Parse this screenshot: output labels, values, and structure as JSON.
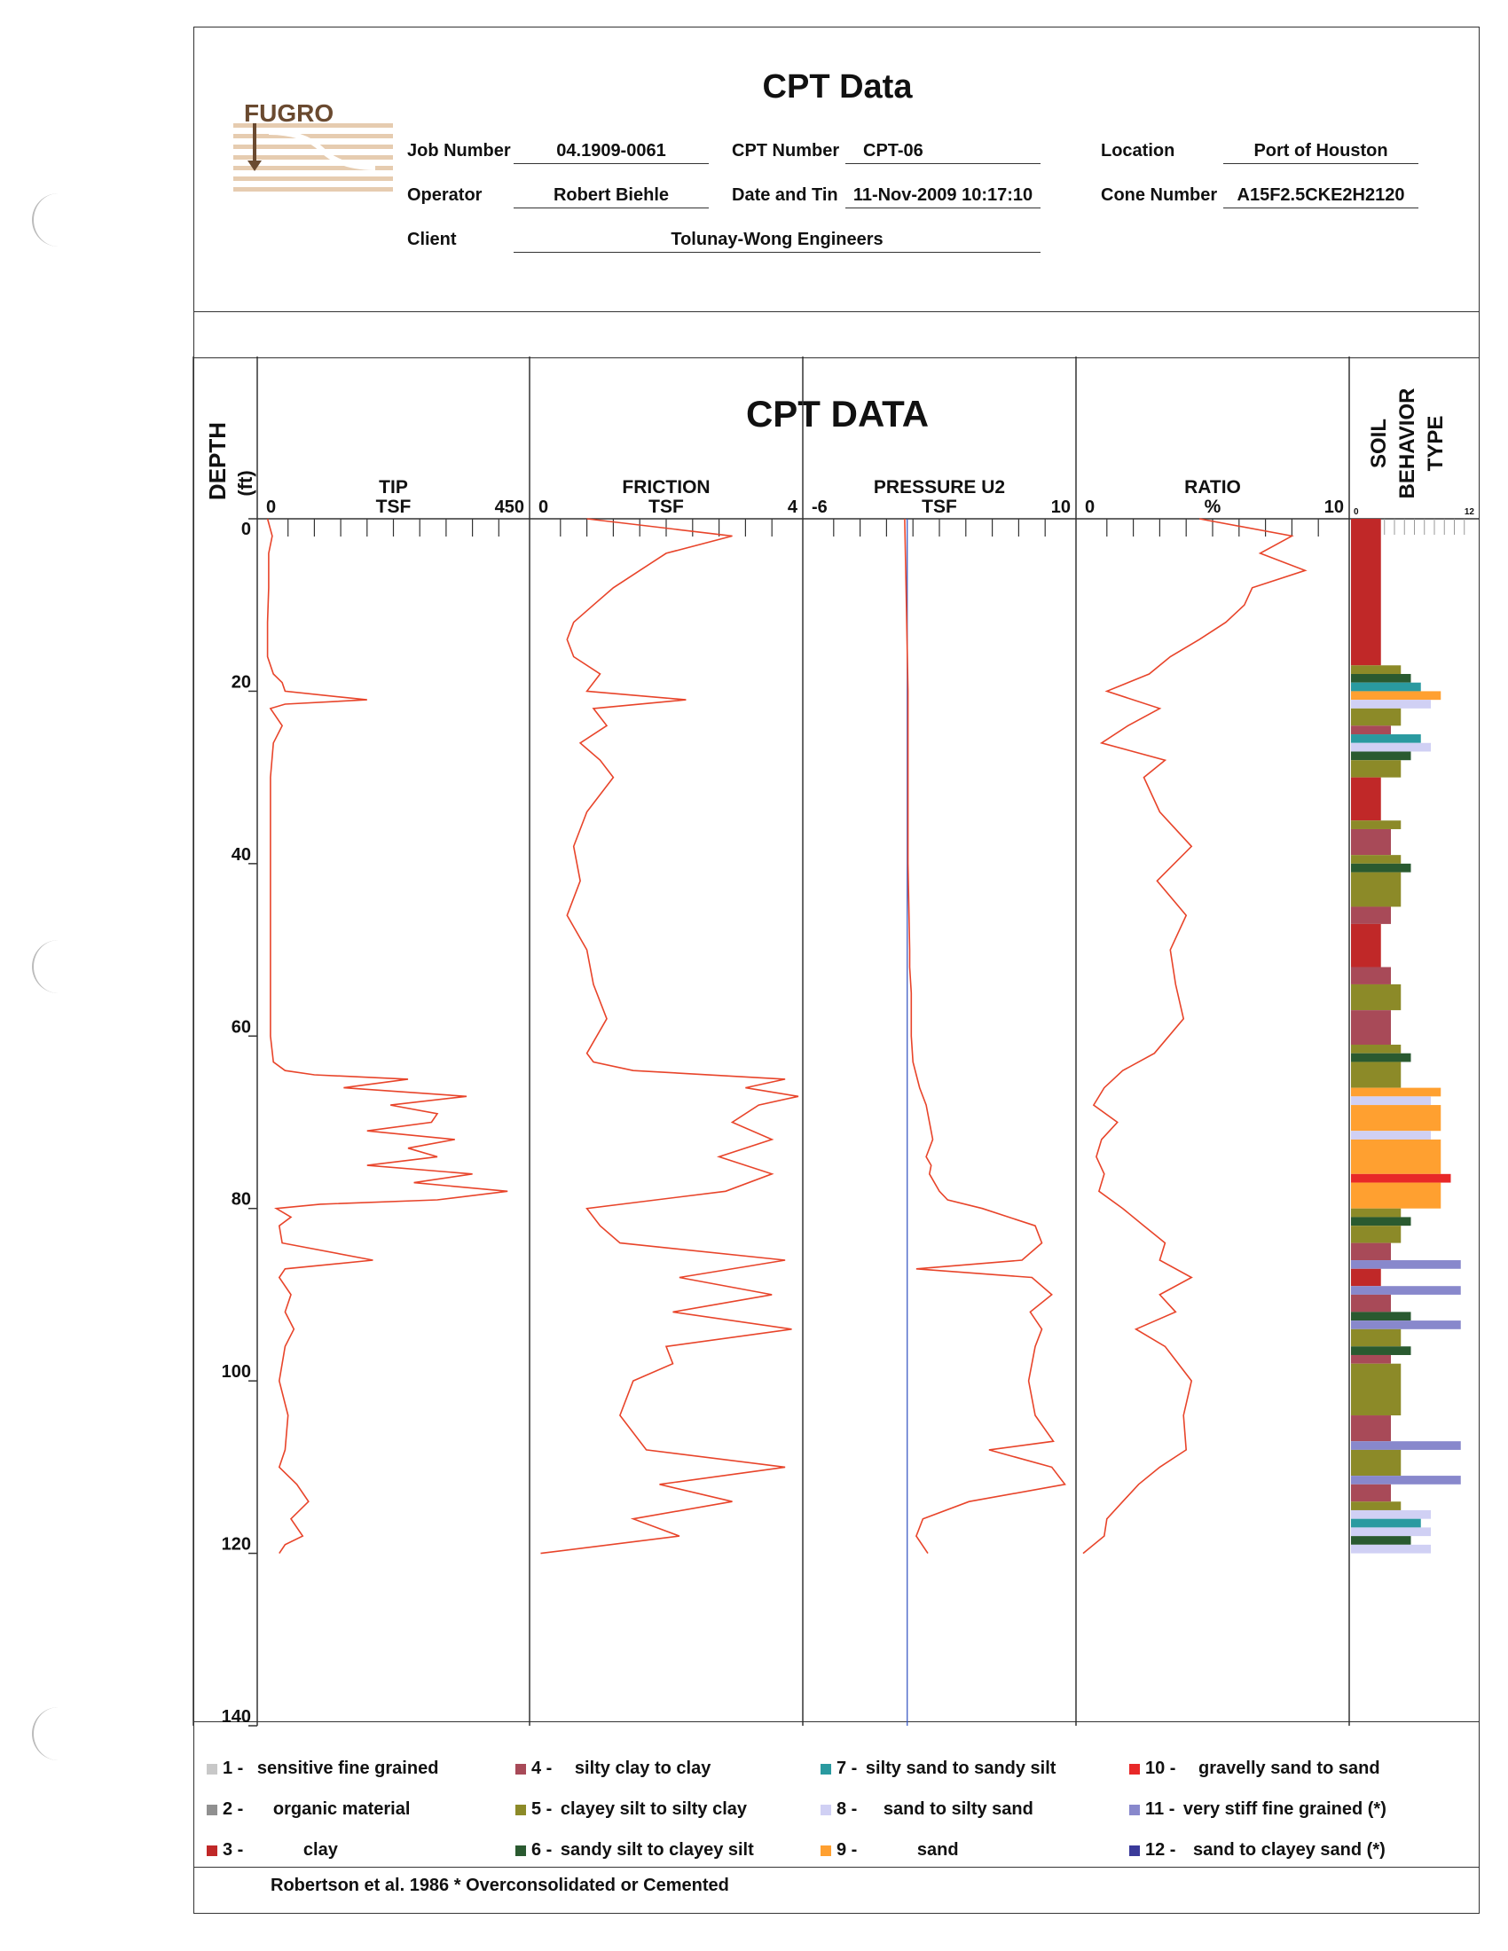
{
  "header": {
    "title": "CPT Data",
    "job_number_label": "Job Number",
    "job_number": "04.1909-0061",
    "cpt_number_label": "CPT Number",
    "cpt_number": "CPT-06",
    "location_label": "Location",
    "location": "Port of Houston",
    "operator_label": "Operator",
    "operator": "Robert Biehle",
    "date_label": "Date and Tin",
    "date": "11-Nov-2009 10:17:10",
    "cone_label": "Cone Number",
    "cone": "A15F2.5CKE2H2120",
    "client_label": "Client",
    "client": "Tolunay-Wong Engineers",
    "logo_text": "FUGRO"
  },
  "chart_data": {
    "type": "line",
    "title": "CPT DATA",
    "depth_label": "DEPTH",
    "depth_unit": "(ft)",
    "depth_range": [
      0,
      140
    ],
    "depth_ticks": [
      0,
      20,
      40,
      60,
      80,
      100,
      120,
      140
    ],
    "tracks": [
      {
        "name": "TIP",
        "unit": "TSF",
        "min": 0,
        "max": 450,
        "min_label": "0",
        "max_label": "450",
        "depth": [
          0,
          2,
          4,
          8,
          12,
          16,
          18,
          19,
          20,
          21,
          21.5,
          22,
          24,
          26,
          30,
          40,
          50,
          60,
          63,
          64,
          64.5,
          65,
          66,
          67,
          68,
          69,
          70,
          71,
          72,
          73,
          74,
          75,
          76,
          77,
          78,
          79,
          79.5,
          80,
          81,
          82,
          84,
          86,
          87,
          88,
          90,
          92,
          94,
          96,
          100,
          104,
          108,
          110,
          112,
          114,
          116,
          118,
          119,
          120
        ],
        "values": [
          10,
          18,
          12,
          12,
          10,
          10,
          20,
          35,
          40,
          180,
          40,
          15,
          35,
          20,
          15,
          15,
          15,
          15,
          20,
          40,
          90,
          250,
          140,
          350,
          220,
          300,
          290,
          180,
          330,
          250,
          300,
          180,
          360,
          260,
          420,
          300,
          100,
          25,
          50,
          30,
          35,
          190,
          40,
          30,
          50,
          40,
          55,
          40,
          30,
          45,
          40,
          30,
          60,
          80,
          50,
          70,
          40,
          30
        ]
      },
      {
        "name": "FRICTION",
        "unit": "TSF",
        "min": 0,
        "max": 4,
        "min_label": "0",
        "max_label": "4",
        "depth": [
          0,
          2,
          4,
          6,
          8,
          10,
          12,
          14,
          16,
          18,
          20,
          21,
          22,
          24,
          26,
          28,
          30,
          34,
          38,
          42,
          46,
          50,
          54,
          58,
          62,
          63,
          64,
          65,
          66,
          67,
          68,
          70,
          72,
          74,
          76,
          78,
          80,
          82,
          84,
          86,
          88,
          90,
          92,
          94,
          96,
          98,
          100,
          104,
          108,
          110,
          112,
          114,
          116,
          118,
          120
        ],
        "values": [
          0.8,
          3.0,
          2.0,
          1.6,
          1.2,
          0.9,
          0.6,
          0.5,
          0.6,
          1.0,
          0.8,
          2.3,
          0.9,
          1.1,
          0.7,
          1.0,
          1.2,
          0.8,
          0.6,
          0.7,
          0.5,
          0.8,
          0.9,
          1.1,
          0.8,
          0.9,
          1.5,
          3.8,
          3.2,
          4.0,
          3.4,
          3.0,
          3.6,
          2.8,
          3.6,
          2.9,
          0.8,
          1.0,
          1.3,
          3.8,
          2.2,
          3.6,
          2.1,
          3.9,
          2.0,
          2.1,
          1.5,
          1.3,
          1.7,
          3.8,
          1.9,
          3.0,
          1.5,
          2.2,
          0.1
        ]
      },
      {
        "name": "PRESSURE U2",
        "unit": "TSF",
        "min": -6,
        "max": 10,
        "min_label": "-6",
        "max_label": "10",
        "depth": [
          0,
          10,
          20,
          30,
          40,
          50,
          52,
          55,
          60,
          63,
          66,
          68,
          70,
          72,
          74,
          75,
          76,
          78,
          79,
          80,
          82,
          84,
          86,
          87,
          88,
          90,
          92,
          94,
          96,
          100,
          104,
          107,
          108,
          110,
          112,
          114,
          116,
          118,
          120
        ],
        "values": [
          -0.1,
          0.0,
          0.1,
          0.1,
          0.1,
          0.2,
          0.2,
          0.3,
          0.3,
          0.4,
          0.8,
          1.2,
          1.4,
          1.6,
          1.2,
          1.5,
          1.4,
          2.0,
          2.5,
          4.6,
          7.8,
          8.2,
          7.0,
          0.6,
          7.6,
          8.8,
          7.5,
          8.2,
          7.8,
          7.4,
          7.8,
          8.9,
          5.0,
          8.8,
          9.6,
          3.8,
          1.0,
          0.6,
          1.3
        ]
      },
      {
        "name": "RATIO",
        "unit": "%",
        "min": 0,
        "max": 10,
        "min_label": "0",
        "max_label": "10",
        "depth": [
          0,
          2,
          4,
          6,
          8,
          10,
          12,
          14,
          16,
          18,
          20,
          22,
          24,
          26,
          28,
          30,
          34,
          38,
          42,
          46,
          50,
          54,
          58,
          62,
          64,
          66,
          68,
          70,
          72,
          74,
          76,
          78,
          80,
          82,
          84,
          86,
          88,
          90,
          92,
          94,
          96,
          100,
          104,
          108,
          110,
          112,
          114,
          116,
          118,
          120
        ],
        "values": [
          4.5,
          8.0,
          6.8,
          8.5,
          6.5,
          6.2,
          5.5,
          4.5,
          3.4,
          2.6,
          1.0,
          3.0,
          1.8,
          0.8,
          3.2,
          2.4,
          3.0,
          4.2,
          2.9,
          4.0,
          3.4,
          3.6,
          3.9,
          2.8,
          1.6,
          0.9,
          0.5,
          1.4,
          0.8,
          0.6,
          0.9,
          0.7,
          1.6,
          2.4,
          3.2,
          3.0,
          4.2,
          3.0,
          3.6,
          2.1,
          3.2,
          4.2,
          3.9,
          4.0,
          3.0,
          2.2,
          1.6,
          1.0,
          0.9,
          0.1
        ]
      }
    ],
    "soil_behavior": {
      "label": "SOIL BEHAVIOR TYPE",
      "min_label": "0",
      "max_label": "12",
      "max": 12,
      "layers": [
        {
          "from": 0,
          "to": 17,
          "zone": 3
        },
        {
          "from": 17,
          "to": 18,
          "zone": 5
        },
        {
          "from": 18,
          "to": 19,
          "zone": 6
        },
        {
          "from": 19,
          "to": 20,
          "zone": 7
        },
        {
          "from": 20,
          "to": 21,
          "zone": 9
        },
        {
          "from": 21,
          "to": 22,
          "zone": 8
        },
        {
          "from": 22,
          "to": 24,
          "zone": 5
        },
        {
          "from": 24,
          "to": 25,
          "zone": 4
        },
        {
          "from": 25,
          "to": 26,
          "zone": 7
        },
        {
          "from": 26,
          "to": 27,
          "zone": 8
        },
        {
          "from": 27,
          "to": 28,
          "zone": 6
        },
        {
          "from": 28,
          "to": 30,
          "zone": 5
        },
        {
          "from": 30,
          "to": 35,
          "zone": 3
        },
        {
          "from": 35,
          "to": 36,
          "zone": 5
        },
        {
          "from": 36,
          "to": 39,
          "zone": 4
        },
        {
          "from": 39,
          "to": 40,
          "zone": 5
        },
        {
          "from": 40,
          "to": 41,
          "zone": 6
        },
        {
          "from": 41,
          "to": 45,
          "zone": 5
        },
        {
          "from": 45,
          "to": 47,
          "zone": 4
        },
        {
          "from": 47,
          "to": 52,
          "zone": 3
        },
        {
          "from": 52,
          "to": 54,
          "zone": 4
        },
        {
          "from": 54,
          "to": 57,
          "zone": 5
        },
        {
          "from": 57,
          "to": 61,
          "zone": 4
        },
        {
          "from": 61,
          "to": 62,
          "zone": 5
        },
        {
          "from": 62,
          "to": 63,
          "zone": 6
        },
        {
          "from": 63,
          "to": 66,
          "zone": 5
        },
        {
          "from": 66,
          "to": 67,
          "zone": 9
        },
        {
          "from": 67,
          "to": 68,
          "zone": 8
        },
        {
          "from": 68,
          "to": 71,
          "zone": 9
        },
        {
          "from": 71,
          "to": 72,
          "zone": 8
        },
        {
          "from": 72,
          "to": 76,
          "zone": 9
        },
        {
          "from": 76,
          "to": 77,
          "zone": 10
        },
        {
          "from": 77,
          "to": 80,
          "zone": 9
        },
        {
          "from": 80,
          "to": 81,
          "zone": 5
        },
        {
          "from": 81,
          "to": 82,
          "zone": 6
        },
        {
          "from": 82,
          "to": 84,
          "zone": 5
        },
        {
          "from": 84,
          "to": 86,
          "zone": 4
        },
        {
          "from": 86,
          "to": 87,
          "zone": 11
        },
        {
          "from": 87,
          "to": 89,
          "zone": 3
        },
        {
          "from": 89,
          "to": 90,
          "zone": 11
        },
        {
          "from": 90,
          "to": 92,
          "zone": 4
        },
        {
          "from": 92,
          "to": 93,
          "zone": 6
        },
        {
          "from": 93,
          "to": 94,
          "zone": 11
        },
        {
          "from": 94,
          "to": 96,
          "zone": 5
        },
        {
          "from": 96,
          "to": 97,
          "zone": 6
        },
        {
          "from": 97,
          "to": 98,
          "zone": 4
        },
        {
          "from": 98,
          "to": 104,
          "zone": 5
        },
        {
          "from": 104,
          "to": 107,
          "zone": 4
        },
        {
          "from": 107,
          "to": 108,
          "zone": 11
        },
        {
          "from": 108,
          "to": 111,
          "zone": 5
        },
        {
          "from": 111,
          "to": 112,
          "zone": 11
        },
        {
          "from": 112,
          "to": 114,
          "zone": 4
        },
        {
          "from": 114,
          "to": 115,
          "zone": 5
        },
        {
          "from": 115,
          "to": 116,
          "zone": 8
        },
        {
          "from": 116,
          "to": 117,
          "zone": 7
        },
        {
          "from": 117,
          "to": 118,
          "zone": 8
        },
        {
          "from": 118,
          "to": 119,
          "zone": 6
        },
        {
          "from": 119,
          "to": 120,
          "zone": 8
        }
      ]
    }
  },
  "legend": [
    {
      "num": "1 -",
      "label": "sensitive fine grained",
      "color": "#c8c8c8",
      "zone": 1
    },
    {
      "num": "4 -",
      "label": "silty clay to clay",
      "color": "#a84a58",
      "zone": 4
    },
    {
      "num": "7 -",
      "label": "silty sand to sandy silt",
      "color": "#2a9aa0",
      "zone": 7
    },
    {
      "num": "10 -",
      "label": "gravelly sand to sand",
      "color": "#e82828",
      "zone": 10
    },
    {
      "num": "2 -",
      "label": "organic material",
      "color": "#909090",
      "zone": 2
    },
    {
      "num": "5 -",
      "label": "clayey silt to silty clay",
      "color": "#8c8a28",
      "zone": 5
    },
    {
      "num": "8 -",
      "label": "sand to silty sand",
      "color": "#d0d0f4",
      "zone": 8
    },
    {
      "num": "11 -",
      "label": "very stiff fine grained (*)",
      "color": "#8888cc",
      "zone": 11
    },
    {
      "num": "3 -",
      "label": "clay",
      "color": "#c02828",
      "zone": 3
    },
    {
      "num": "6 -",
      "label": "sandy silt to clayey silt",
      "color": "#2a5a30",
      "zone": 6
    },
    {
      "num": "9 -",
      "label": "sand",
      "color": "#ffa030",
      "zone": 9
    },
    {
      "num": "12 -",
      "label": "sand to clayey sand (*)",
      "color": "#3a3a9a",
      "zone": 12
    }
  ],
  "footer": "Robertson et al. 1986  * Overconsolidated or Cemented",
  "colors": {
    "trace": "#e8442a",
    "u0_line": "#3050c0",
    "frame": "#333333"
  }
}
